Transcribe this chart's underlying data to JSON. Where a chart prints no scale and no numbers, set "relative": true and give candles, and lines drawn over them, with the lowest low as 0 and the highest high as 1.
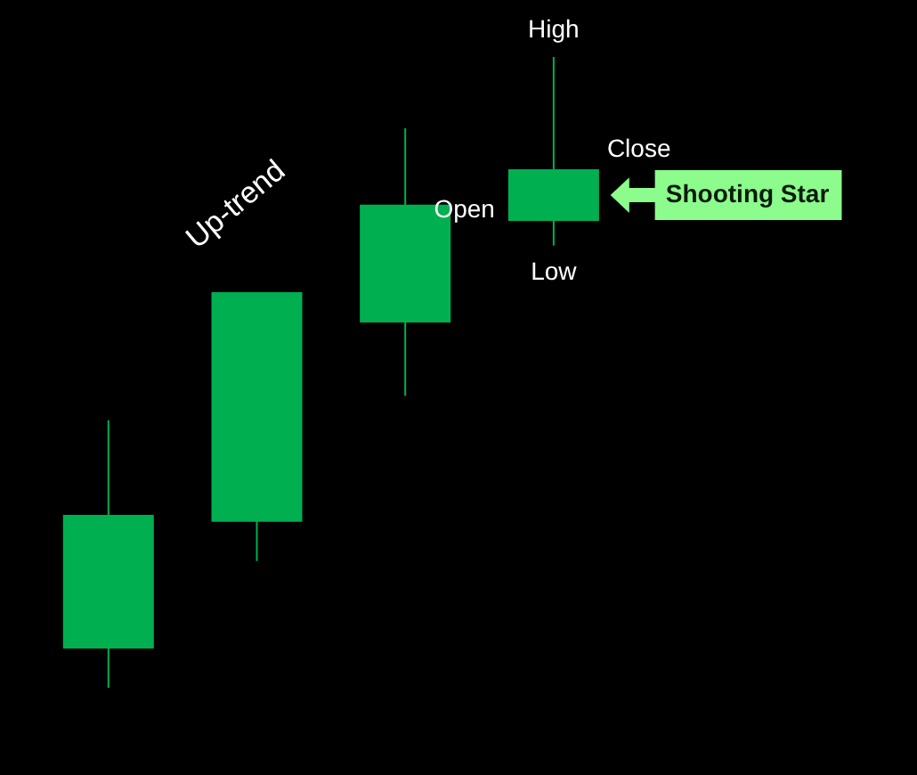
{
  "chart_data": {
    "type": "candlestick",
    "relative": true,
    "categories": [
      null,
      null,
      null,
      null
    ],
    "ohlc": [
      [
        0.062,
        0.424,
        0,
        0.274
      ],
      [
        0.263,
        0.627,
        0.201,
        0.627
      ],
      [
        0.579,
        0.887,
        0.463,
        0.766
      ],
      [
        0.74,
        1,
        0.701,
        0.822
      ]
    ],
    "color": "#00b050",
    "annotations": [
      "Up-trend",
      "High",
      "Close",
      "Open",
      "Low",
      "Shooting Star"
    ]
  }
}
